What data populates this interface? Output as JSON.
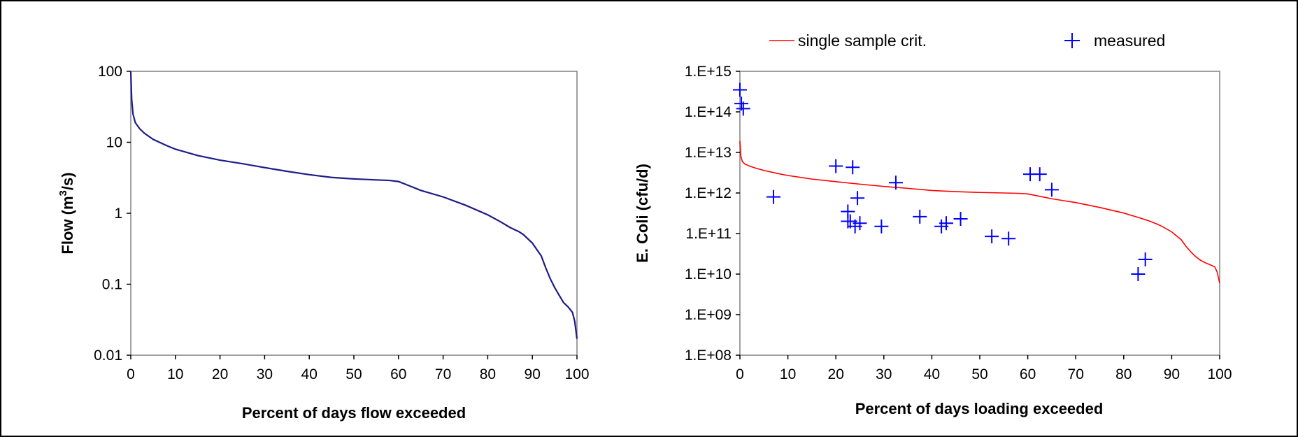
{
  "chart_data": [
    {
      "type": "line",
      "title": "",
      "xlabel": "Percent of days flow exceeded",
      "ylabel_main": "Flow (m",
      "ylabel_sup": "3",
      "ylabel_tail": "/s)",
      "xlim": [
        0,
        100
      ],
      "ylim": [
        0.01,
        100
      ],
      "yscale": "log",
      "grid": false,
      "x_ticks": [
        "0",
        "10",
        "20",
        "30",
        "40",
        "50",
        "60",
        "70",
        "80",
        "90",
        "100"
      ],
      "y_ticks": [
        "100",
        "10",
        "1",
        "0.1",
        "0.01"
      ],
      "line_color": "#1c1c8a",
      "series": [
        {
          "x": [
            0,
            0.2,
            0.5,
            1,
            2,
            3,
            5,
            8,
            10,
            15,
            20,
            25,
            30,
            35,
            40,
            45,
            50,
            55,
            58,
            60,
            62,
            65,
            70,
            75,
            80,
            83,
            85,
            87,
            88,
            90,
            92,
            93,
            94,
            95,
            96,
            97,
            98,
            99,
            99.5,
            100
          ],
          "y": [
            100,
            40,
            25,
            19,
            15.5,
            13.5,
            11,
            9,
            8,
            6.5,
            5.6,
            5,
            4.4,
            3.9,
            3.5,
            3.2,
            3.05,
            2.95,
            2.9,
            2.8,
            2.5,
            2.1,
            1.7,
            1.3,
            0.95,
            0.75,
            0.63,
            0.55,
            0.5,
            0.38,
            0.25,
            0.17,
            0.12,
            0.09,
            0.07,
            0.055,
            0.048,
            0.04,
            0.03,
            0.017
          ]
        }
      ]
    },
    {
      "type": "scatter",
      "title": "",
      "xlabel": "Percent of days loading exceeded",
      "ylabel": "E. Coli (cfu/d)",
      "xlim": [
        0,
        100
      ],
      "ylim": [
        100000000,
        1000000000000000
      ],
      "yscale": "log",
      "grid": false,
      "legend_position": "top",
      "x_ticks": [
        "0",
        "10",
        "20",
        "30",
        "40",
        "50",
        "60",
        "70",
        "80",
        "90",
        "100"
      ],
      "y_ticks": [
        "1.E+15",
        "1.E+14",
        "1.E+13",
        "1.E+12",
        "1.E+11",
        "1.E+10",
        "1.E+09",
        "1.E+08"
      ],
      "series": [
        {
          "name": "single sample crit.",
          "kind": "line",
          "color": "#ff0000",
          "x": [
            0,
            0.2,
            0.5,
            1,
            2,
            3,
            5,
            8,
            10,
            15,
            20,
            25,
            30,
            35,
            40,
            45,
            50,
            55,
            58,
            60,
            62,
            65,
            70,
            75,
            80,
            83,
            85,
            87,
            88,
            90,
            92,
            93,
            94,
            95,
            96,
            97,
            98,
            99,
            99.5,
            100
          ],
          "y": [
            19000000000000,
            8000000000000,
            6000000000000,
            5200000000000,
            4600000000000,
            4200000000000,
            3600000000000,
            3000000000000,
            2700000000000,
            2200000000000,
            1900000000000,
            1650000000000,
            1450000000000,
            1300000000000,
            1150000000000,
            1080000000000,
            1030000000000,
            1000000000000,
            980000000000,
            950000000000,
            850000000000,
            720000000000,
            580000000000,
            440000000000,
            320000000000,
            250000000000,
            210000000000,
            170000000000,
            150000000000,
            110000000000,
            70000000000,
            48000000000,
            35000000000,
            27000000000,
            22000000000,
            19000000000,
            17000000000,
            15000000000,
            11000000000,
            6000000000
          ]
        },
        {
          "name": "measured",
          "kind": "scatter",
          "color": "#0000ff",
          "x": [
            0,
            0.3,
            0.7,
            7,
            20,
            22.5,
            23,
            23.5,
            24,
            24.5,
            22.5,
            25,
            29.5,
            32.5,
            37.5,
            42,
            43,
            46,
            52.5,
            56,
            60.5,
            62.5,
            65,
            83,
            84.5
          ],
          "y": [
            350000000000000,
            160000000000000,
            120000000000000,
            800000000000,
            4600000000000,
            350000000000,
            200000000000,
            4300000000000,
            150000000000,
            750000000000,
            200000000000,
            180000000000,
            150000000000,
            1800000000000,
            260000000000,
            150000000000,
            180000000000,
            230000000000,
            85000000000,
            75000000000,
            2900000000000,
            2900000000000,
            1200000000000,
            10000000000,
            23000000000
          ]
        }
      ]
    }
  ]
}
